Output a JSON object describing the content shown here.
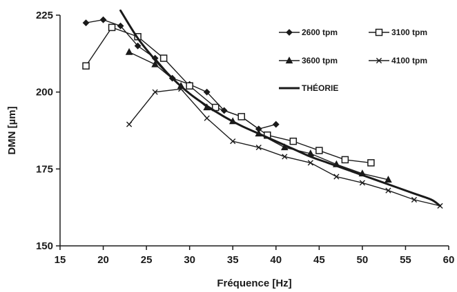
{
  "chart_data": {
    "type": "line",
    "title": "",
    "xlabel": "Fréquence [Hz]",
    "ylabel": "DMN [µm]",
    "xlim": [
      15,
      60
    ],
    "ylim": [
      150,
      225
    ],
    "x_ticks": [
      15,
      20,
      25,
      30,
      35,
      40,
      45,
      50,
      55,
      60
    ],
    "y_ticks": [
      150,
      175,
      200,
      225
    ],
    "grid": false,
    "legend_position": "top-right",
    "series": [
      {
        "name": "2600 tpm",
        "marker": "diamond",
        "color": "#1a1a1a",
        "x": [
          18,
          20,
          22,
          24,
          26,
          28,
          30,
          32,
          34,
          36,
          38,
          40
        ],
        "y": [
          222.5,
          223.5,
          221.5,
          215,
          211,
          204.5,
          202.5,
          200,
          194,
          192,
          188,
          189.5
        ]
      },
      {
        "name": "3100 tpm",
        "marker": "open-square",
        "color": "#1a1a1a",
        "x": [
          18,
          21,
          24,
          27,
          30,
          33,
          36,
          39,
          42,
          45,
          48,
          51
        ],
        "y": [
          208.5,
          221,
          218,
          211,
          202,
          195,
          192,
          186,
          184,
          181,
          178,
          177
        ]
      },
      {
        "name": "3600 tpm",
        "marker": "triangle",
        "color": "#1a1a1a",
        "x": [
          23,
          26,
          29,
          32,
          35,
          38,
          41,
          44,
          47,
          50,
          53
        ],
        "y": [
          213,
          209,
          202,
          195,
          190.5,
          186.5,
          182,
          180,
          176.5,
          173.5,
          171.5
        ]
      },
      {
        "name": "4100 tpm",
        "marker": "x",
        "color": "#1a1a1a",
        "x": [
          23,
          26,
          29,
          32,
          35,
          38,
          41,
          44,
          47,
          50,
          53,
          56,
          59
        ],
        "y": [
          189.5,
          200,
          201,
          191.5,
          184,
          182,
          179,
          177,
          172.5,
          170.5,
          168,
          165,
          163
        ]
      },
      {
        "name": "THÉORIE",
        "marker": "none",
        "color": "#1a1a1a",
        "thick": true,
        "x": [
          22,
          24,
          26,
          28,
          30,
          32,
          34,
          36,
          38,
          40,
          42,
          44,
          46,
          48,
          50,
          52,
          54,
          56,
          58,
          59
        ],
        "y": [
          226.5,
          217.5,
          210.5,
          204.5,
          199.5,
          195.5,
          192,
          189,
          186.5,
          184,
          181.5,
          179,
          177,
          175,
          173,
          171,
          169,
          167,
          165,
          163
        ]
      }
    ]
  }
}
